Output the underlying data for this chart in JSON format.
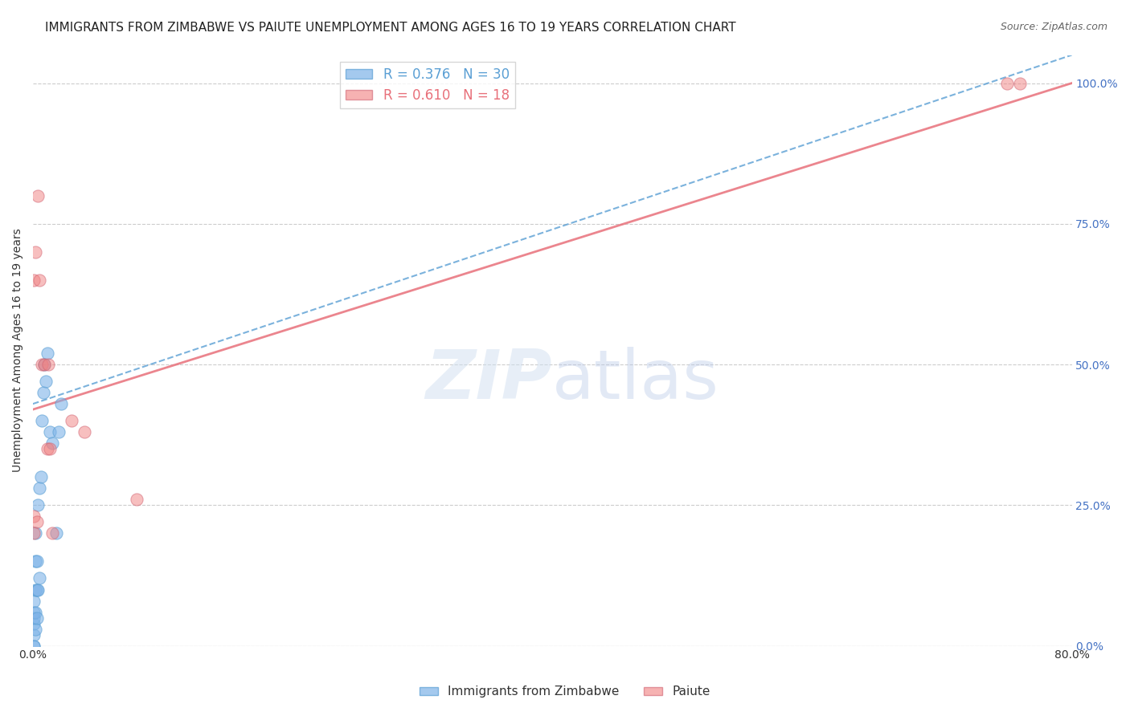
{
  "title": "IMMIGRANTS FROM ZIMBABWE VS PAIUTE UNEMPLOYMENT AMONG AGES 16 TO 19 YEARS CORRELATION CHART",
  "source": "Source: ZipAtlas.com",
  "xlabel": "",
  "ylabel": "Unemployment Among Ages 16 to 19 years",
  "xlim": [
    0.0,
    0.8
  ],
  "ylim": [
    0.0,
    1.05
  ],
  "xticks": [
    0.0,
    0.1,
    0.2,
    0.3,
    0.4,
    0.5,
    0.6,
    0.7,
    0.8
  ],
  "xtick_labels": [
    "0.0%",
    "",
    "",
    "",
    "",
    "",
    "",
    "",
    "80.0%"
  ],
  "ytick_labels_right": [
    "0.0%",
    "25.0%",
    "50.0%",
    "75.0%",
    "100.0%"
  ],
  "yticks_right": [
    0.0,
    0.25,
    0.5,
    0.75,
    1.0
  ],
  "legend_blue_r": "R = 0.376",
  "legend_blue_n": "N = 30",
  "legend_pink_r": "R = 0.610",
  "legend_pink_n": "N = 18",
  "blue_color": "#7eb3e8",
  "pink_color": "#f08080",
  "blue_line_color": "#5a9fd4",
  "pink_line_color": "#e8707a",
  "watermark": "ZIPatlas",
  "blue_scatter_x": [
    0.001,
    0.001,
    0.001,
    0.001,
    0.001,
    0.002,
    0.002,
    0.002,
    0.002,
    0.002,
    0.003,
    0.003,
    0.003,
    0.004,
    0.004,
    0.005,
    0.005,
    0.006,
    0.007,
    0.008,
    0.009,
    0.01,
    0.011,
    0.013,
    0.015,
    0.018,
    0.02,
    0.022,
    0.001,
    0.001
  ],
  "blue_scatter_y": [
    0.02,
    0.04,
    0.05,
    0.06,
    0.08,
    0.03,
    0.06,
    0.1,
    0.15,
    0.2,
    0.05,
    0.1,
    0.15,
    0.1,
    0.25,
    0.12,
    0.28,
    0.3,
    0.4,
    0.45,
    0.5,
    0.47,
    0.52,
    0.38,
    0.36,
    0.2,
    0.38,
    0.43,
    0.0,
    0.0
  ],
  "pink_scatter_x": [
    0.001,
    0.001,
    0.002,
    0.004,
    0.005,
    0.007,
    0.009,
    0.011,
    0.013,
    0.015,
    0.03,
    0.04,
    0.08,
    0.75,
    0.76,
    0.001,
    0.003,
    0.012
  ],
  "pink_scatter_y": [
    0.2,
    0.65,
    0.7,
    0.8,
    0.65,
    0.5,
    0.5,
    0.35,
    0.35,
    0.2,
    0.4,
    0.38,
    0.26,
    1.0,
    1.0,
    0.23,
    0.22,
    0.5
  ],
  "blue_trend_x": [
    0.0,
    0.8
  ],
  "blue_trend_y": [
    0.43,
    1.05
  ],
  "pink_trend_x": [
    0.0,
    0.8
  ],
  "pink_trend_y": [
    0.42,
    1.0
  ],
  "title_fontsize": 11,
  "axis_label_fontsize": 10,
  "tick_fontsize": 10
}
